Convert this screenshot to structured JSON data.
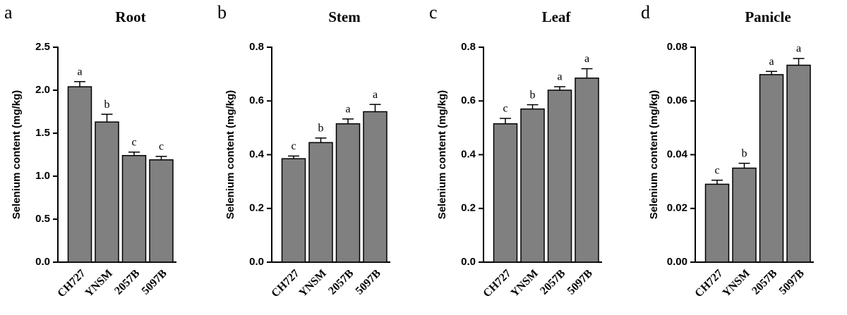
{
  "chart_data": [
    {
      "type": "bar",
      "panel_label": "a",
      "title": "Root",
      "y_label": "Selenium content (mg/kg)",
      "categories": [
        "CH727",
        "YNSM",
        "2057B",
        "5097B"
      ],
      "values": [
        2.04,
        1.63,
        1.24,
        1.19
      ],
      "errors": [
        0.06,
        0.09,
        0.04,
        0.04
      ],
      "letters": [
        "a",
        "b",
        "c",
        "c"
      ],
      "color": "#808080",
      "ylim": [
        0,
        2.5
      ],
      "yticks": [
        {
          "value": 0,
          "label": "0.0"
        },
        0.5,
        {
          "value": 1,
          "label": "1.0"
        },
        1.5,
        {
          "value": 2,
          "label": "2.0"
        },
        2.5
      ]
    },
    {
      "type": "bar",
      "panel_label": "b",
      "title": "Stem",
      "y_label": "Selenium content (mg/kg)",
      "categories": [
        "CH727",
        "YNSM",
        "2057B",
        "5097B"
      ],
      "values": [
        0.385,
        0.445,
        0.515,
        0.56
      ],
      "errors": [
        0.01,
        0.017,
        0.018,
        0.027
      ],
      "letters": [
        "c",
        "b",
        "a",
        "a"
      ],
      "color": "#808080",
      "ylim": [
        0,
        0.8
      ],
      "yticks": [
        {
          "value": 0,
          "label": "0.0"
        },
        0.2,
        0.4,
        0.6,
        0.8
      ]
    },
    {
      "type": "bar",
      "panel_label": "c",
      "title": "Leaf",
      "y_label": "Selenium content (mg/kg)",
      "categories": [
        "CH727",
        "YNSM",
        "2057B",
        "5097B"
      ],
      "values": [
        0.515,
        0.57,
        0.64,
        0.685
      ],
      "errors": [
        0.02,
        0.016,
        0.013,
        0.035
      ],
      "letters": [
        "c",
        "b",
        "a",
        "a"
      ],
      "color": "#808080",
      "ylim": [
        0,
        0.8
      ],
      "yticks": [
        {
          "value": 0,
          "label": "0.0"
        },
        0.2,
        0.4,
        0.6,
        0.8
      ]
    },
    {
      "type": "bar",
      "panel_label": "d",
      "title": "Panicle",
      "y_label": "Selenium content (mg/kg)",
      "categories": [
        "CH727",
        "YNSM",
        "2057B",
        "5097B"
      ],
      "values": [
        0.029,
        0.035,
        0.0698,
        0.0733
      ],
      "errors": [
        0.0015,
        0.0018,
        0.0012,
        0.0025
      ],
      "letters": [
        "c",
        "b",
        "a",
        "a"
      ],
      "color": "#808080",
      "ylim": [
        0,
        0.08
      ],
      "yticks": [
        {
          "value": 0,
          "label": "0.00"
        },
        0.02,
        0.04,
        0.06,
        0.08
      ]
    }
  ]
}
